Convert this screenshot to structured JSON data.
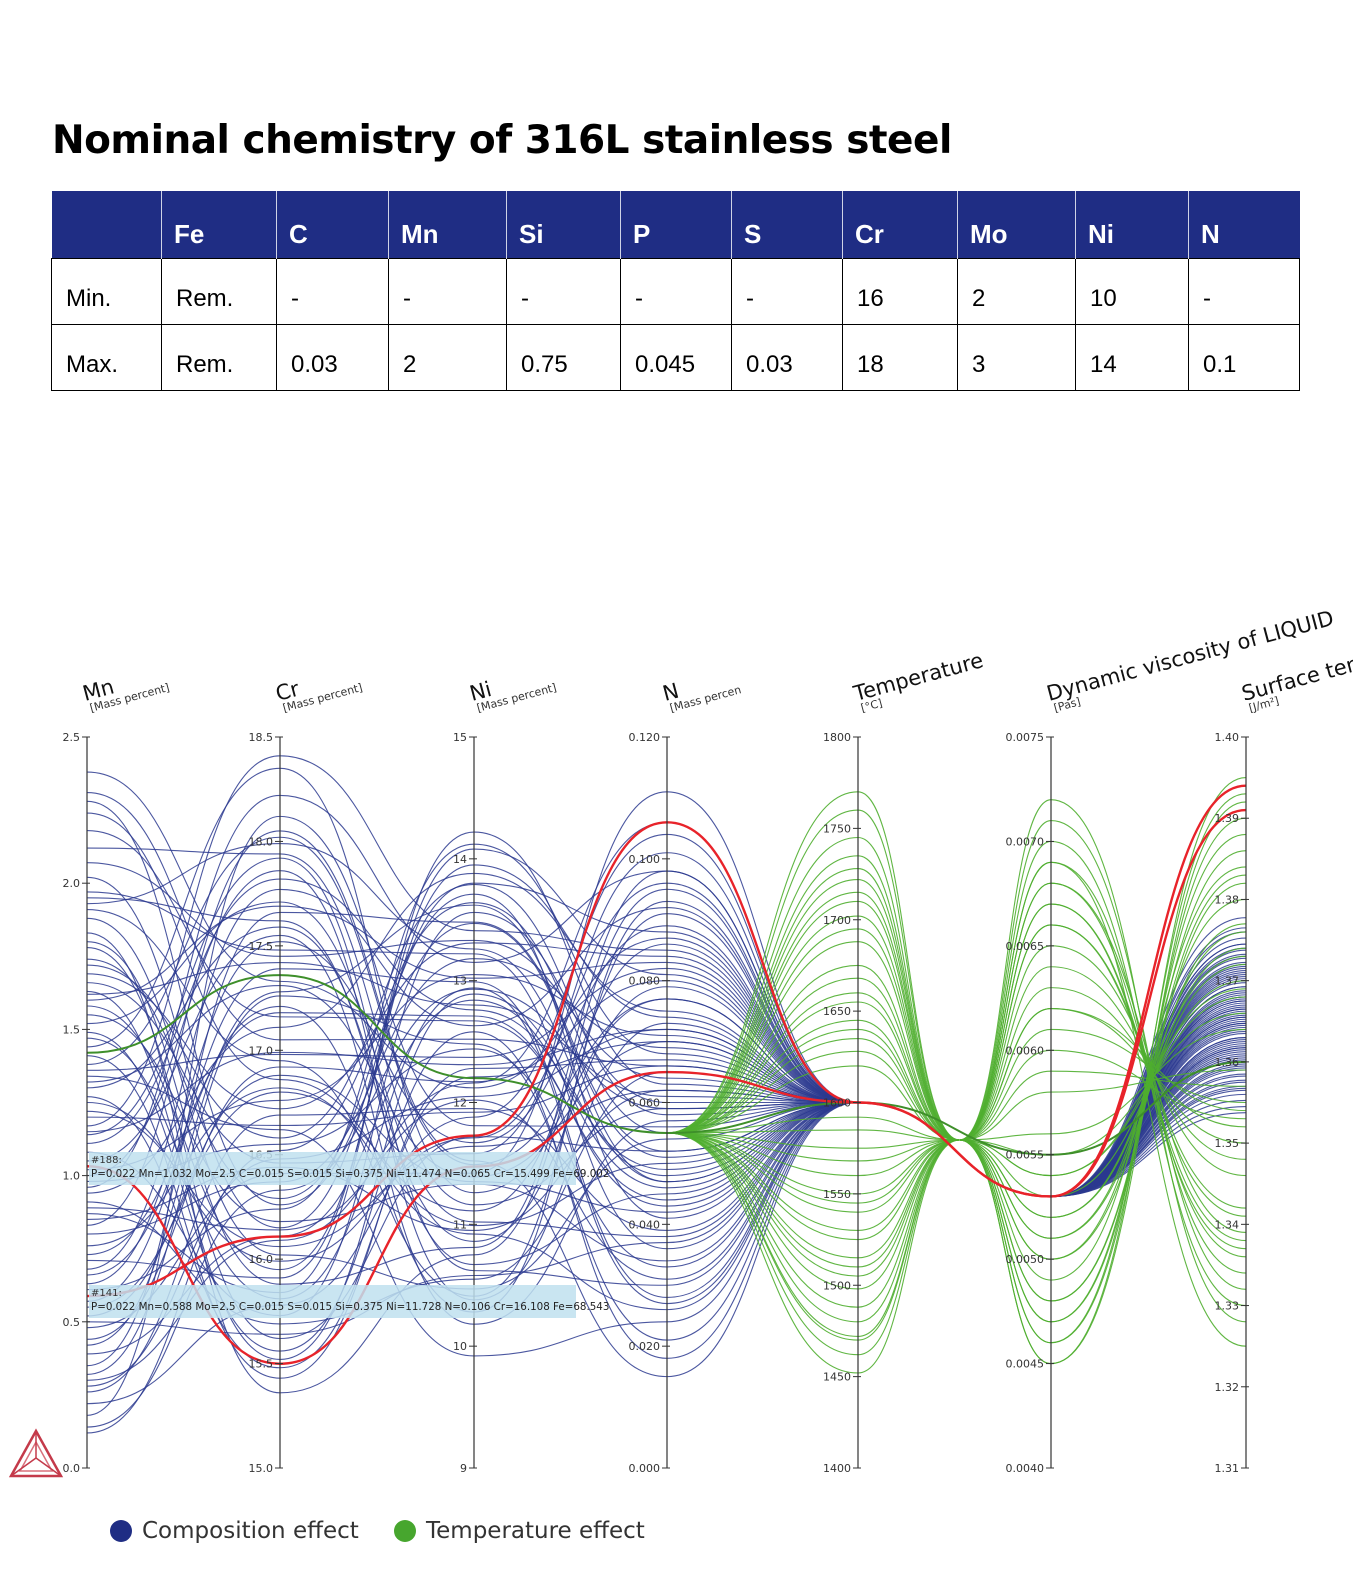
{
  "title": "Nominal chemistry of 316L stainless steel",
  "table": {
    "headers": [
      "",
      "Fe",
      "C",
      "Mn",
      "Si",
      "P",
      "S",
      "Cr",
      "Mo",
      "Ni",
      "N"
    ],
    "rows": [
      [
        "Min.",
        "Rem.",
        "-",
        "-",
        "-",
        "-",
        "-",
        "16",
        "2",
        "10",
        "-"
      ],
      [
        "Max.",
        "Rem.",
        "0.03",
        "2",
        "0.75",
        "0.045",
        "0.03",
        "18",
        "3",
        "14",
        "0.1"
      ]
    ]
  },
  "chart_data": {
    "type": "parallel_coordinates",
    "axes": [
      {
        "name": "Mn",
        "unit": "[Mass percent]",
        "min": 0.0,
        "max": 2.5,
        "ticks": [
          "0.0",
          "0.5",
          "1.0",
          "1.5",
          "2.0",
          "2.5"
        ],
        "tick_values": [
          0,
          0.5,
          1,
          1.5,
          2,
          2.5
        ]
      },
      {
        "name": "Cr",
        "unit": "[Mass percent]",
        "min": 15.0,
        "max": 18.5,
        "ticks": [
          "15.0",
          "15.5",
          "16.0",
          "16.5",
          "17.0",
          "17.5",
          "18.0",
          "18.5"
        ],
        "tick_values": [
          15,
          15.5,
          16,
          16.5,
          17,
          17.5,
          18,
          18.5
        ]
      },
      {
        "name": "Ni",
        "unit": "[Mass percent]",
        "min": 9,
        "max": 15,
        "ticks": [
          "9",
          "10",
          "11",
          "12",
          "13",
          "14",
          "15"
        ],
        "tick_values": [
          9,
          10,
          11,
          12,
          13,
          14,
          15
        ]
      },
      {
        "name": "N",
        "unit": "[Mass percen",
        "min": 0.0,
        "max": 0.12,
        "ticks": [
          "0.000",
          "0.020",
          "0.040",
          "0.060",
          "0.080",
          "0.100",
          "0.120"
        ],
        "tick_values": [
          0,
          0.02,
          0.04,
          0.06,
          0.08,
          0.1,
          0.12
        ]
      },
      {
        "name": "Temperature",
        "unit": "[°C]",
        "min": 1400,
        "max": 1800,
        "ticks": [
          "1400",
          "1450",
          "1500",
          "1550",
          "1600",
          "1650",
          "1700",
          "1750",
          "1800"
        ],
        "tick_values": [
          1400,
          1450,
          1500,
          1550,
          1600,
          1650,
          1700,
          1750,
          1800
        ]
      },
      {
        "name": "Dynamic viscosity of LIQUID",
        "unit": "[Pas]",
        "min": 0.004,
        "max": 0.0075,
        "ticks": [
          "0.0040",
          "0.0045",
          "0.0050",
          "0.0055",
          "0.0060",
          "0.0065",
          "0.0070",
          "0.0075"
        ],
        "tick_values": [
          0.004,
          0.0045,
          0.005,
          0.0055,
          0.006,
          0.0065,
          0.007,
          0.0075
        ]
      },
      {
        "name": "Surface tension",
        "unit": "[J/m²]",
        "min": 1.31,
        "max": 1.4,
        "ticks": [
          "1.31",
          "1.32",
          "1.33",
          "1.34",
          "1.35",
          "1.36",
          "1.37",
          "1.38",
          "1.39",
          "1.40"
        ],
        "tick_values": [
          1.31,
          1.32,
          1.33,
          1.34,
          1.35,
          1.36,
          1.37,
          1.38,
          1.39,
          1.4
        ]
      }
    ],
    "highlighted": [
      {
        "id": "#188:",
        "text": "P=0.022 Mn=1.032 Mo=2.5 C=0.015 S=0.015 Si=0.375 Ni=11.474 N=0.065 Cr=15.499 Fe=69.002",
        "values": [
          1.032,
          15.499,
          11.474,
          0.065,
          1600,
          0.0053,
          1.394
        ]
      },
      {
        "id": "#141:",
        "text": "P=0.022 Mn=0.588 Mo=2.5 C=0.015 S=0.015 Si=0.375 Ni=11.728 N=0.106 Cr=16.108 Fe=68.543",
        "values": [
          0.588,
          16.108,
          11.728,
          0.106,
          1600,
          0.0053,
          1.391
        ]
      }
    ],
    "temperature_highlight": {
      "values": [
        1.42,
        17.36,
        12.2,
        0.055,
        1600,
        0.0055,
        1.36
      ]
    },
    "composition_samples": [
      [
        1.62,
        17.42,
        12.8,
        0.061
      ],
      [
        0.52,
        16.88,
        11.35,
        0.042
      ],
      [
        2.02,
        16.15,
        13.8,
        0.088
      ],
      [
        1.14,
        17.92,
        10.62,
        0.03
      ],
      [
        0.28,
        16.48,
        12.05,
        0.072
      ],
      [
        1.78,
        15.62,
        11.72,
        0.052
      ],
      [
        0.96,
        18.22,
        13.15,
        0.098
      ],
      [
        1.34,
        16.62,
        9.92,
        0.024
      ],
      [
        2.31,
        17.05,
        12.52,
        0.066
      ],
      [
        0.71,
        15.91,
        14.08,
        0.081
      ],
      [
        1.52,
        17.71,
        11.02,
        0.038
      ],
      [
        0.14,
        16.33,
        12.93,
        0.059
      ],
      [
        1.91,
        16.95,
        10.41,
        0.091
      ],
      [
        0.42,
        17.28,
        13.62,
        0.047
      ],
      [
        1.27,
        15.48,
        12.21,
        0.07
      ],
      [
        0.83,
        18.05,
        11.52,
        0.015
      ],
      [
        1.69,
        16.72,
        13.31,
        0.084
      ],
      [
        1.05,
        17.55,
        10.18,
        0.057
      ],
      [
        0.22,
        15.78,
        11.88,
        0.104
      ],
      [
        2.18,
        17.16,
        12.67,
        0.044
      ],
      [
        0.61,
        16.24,
        14.12,
        0.068
      ],
      [
        1.44,
        18.35,
        11.26,
        0.077
      ],
      [
        0.98,
        16.55,
        12.44,
        0.033
      ],
      [
        1.83,
        15.36,
        10.75,
        0.095
      ],
      [
        0.35,
        17.66,
        13.48,
        0.052
      ],
      [
        1.22,
        16.06,
        11.64,
        0.062
      ],
      [
        2.38,
        17.33,
        12.12,
        0.087
      ],
      [
        0.76,
        16.82,
        10.92,
        0.026
      ],
      [
        1.58,
        15.95,
        13.95,
        0.074
      ],
      [
        1.11,
        17.82,
        12.76,
        0.049
      ],
      [
        0.48,
        16.41,
        11.42,
        0.111
      ],
      [
        1.97,
        17.48,
        13.22,
        0.036
      ],
      [
        0.91,
        15.69,
        10.55,
        0.065
      ],
      [
        1.36,
        16.98,
        12.37,
        0.082
      ],
      [
        0.18,
        18.12,
        11.81,
        0.056
      ],
      [
        1.74,
        16.29,
        13.71,
        0.041
      ],
      [
        0.66,
        17.21,
        10.28,
        0.093
      ],
      [
        1.49,
        15.56,
        12.58,
        0.018
      ],
      [
        1.02,
        16.76,
        13.05,
        0.071
      ],
      [
        2.12,
        17.94,
        11.16,
        0.059
      ],
      [
        0.39,
        16.11,
        12.84,
        0.046
      ],
      [
        1.3,
        17.59,
        10.86,
        0.079
      ],
      [
        0.87,
        15.84,
        14.22,
        0.063
      ],
      [
        1.66,
        16.46,
        11.58,
        0.101
      ],
      [
        0.57,
        17.39,
        12.99,
        0.028
      ],
      [
        1.88,
        16.02,
        10.47,
        0.054
      ],
      [
        1.17,
        18.41,
        13.41,
        0.085
      ],
      [
        0.26,
        16.69,
        11.95,
        0.039
      ],
      [
        1.41,
        15.43,
        12.28,
        0.067
      ],
      [
        0.94,
        17.11,
        13.88,
        0.075
      ],
      [
        2.24,
        16.86,
        10.99,
        0.05
      ],
      [
        0.68,
        17.77,
        12.63,
        0.092
      ],
      [
        1.55,
        16.18,
        11.33,
        0.034
      ],
      [
        1.08,
        15.73,
        13.56,
        0.06
      ],
      [
        0.44,
        16.92,
        12.17,
        0.08
      ],
      [
        1.95,
        17.62,
        10.67,
        0.045
      ],
      [
        0.8,
        16.37,
        13.18,
        0.069
      ],
      [
        1.25,
        15.99,
        11.71,
        0.096
      ],
      [
        0.32,
        17.26,
        12.48,
        0.021
      ],
      [
        1.72,
        16.58,
        13.79,
        0.058
      ],
      [
        1.0,
        17.86,
        10.38,
        0.073
      ],
      [
        1.63,
        15.52,
        12.89,
        0.048
      ],
      [
        0.55,
        16.8,
        11.11,
        0.086
      ],
      [
        2.07,
        17.45,
        13.33,
        0.064
      ],
      [
        0.89,
        16.14,
        12.02,
        0.031
      ],
      [
        1.38,
        18.02,
        11.49,
        0.077
      ],
      [
        0.12,
        16.52,
        13.64,
        0.055
      ],
      [
        1.8,
        15.88,
        10.81,
        0.098
      ],
      [
        0.73,
        17.18,
        12.71,
        0.043
      ],
      [
        1.2,
        16.64,
        11.92,
        0.066
      ],
      [
        1.6,
        17.69,
        13.02,
        0.083
      ],
      [
        0.5,
        15.64,
        10.58,
        0.037
      ],
      [
        1.15,
        16.99,
        12.31,
        0.072
      ],
      [
        2.28,
        16.26,
        13.47,
        0.051
      ],
      [
        0.63,
        17.52,
        11.67,
        0.089
      ],
      [
        1.47,
        15.81,
        12.94,
        0.027
      ],
      [
        0.85,
        16.44,
        10.95,
        0.062
      ],
      [
        1.93,
        17.99,
        13.26,
        0.047
      ],
      [
        0.3,
        16.09,
        12.16,
        0.106
      ],
      [
        1.32,
        17.31,
        11.39,
        0.07
      ]
    ],
    "temperature_samples": [
      [
        1770,
        0.0045,
        1.395
      ],
      [
        1525,
        0.0069,
        1.325
      ],
      [
        1702,
        0.0048,
        1.382
      ],
      [
        1480,
        0.0071,
        1.332
      ],
      [
        1655,
        0.0052,
        1.372
      ],
      [
        1452,
        0.0066,
        1.341
      ],
      [
        1735,
        0.0047,
        1.388
      ],
      [
        1560,
        0.0062,
        1.352
      ],
      [
        1688,
        0.005,
        1.377
      ],
      [
        1505,
        0.0068,
        1.336
      ],
      [
        1620,
        0.0055,
        1.366
      ],
      [
        1540,
        0.0064,
        1.348
      ],
      [
        1722,
        0.0046,
        1.39
      ],
      [
        1470,
        0.007,
        1.33
      ],
      [
        1668,
        0.0051,
        1.374
      ],
      [
        1585,
        0.0059,
        1.357
      ],
      [
        1745,
        0.0045,
        1.392
      ],
      [
        1498,
        0.0067,
        1.338
      ],
      [
        1635,
        0.0054,
        1.368
      ],
      [
        1575,
        0.0061,
        1.355
      ],
      [
        1710,
        0.0049,
        1.384
      ],
      [
        1462,
        0.0072,
        1.328
      ],
      [
        1645,
        0.0053,
        1.37
      ],
      [
        1530,
        0.0065,
        1.346
      ],
      [
        1695,
        0.005,
        1.38
      ],
      [
        1515,
        0.0066,
        1.342
      ],
      [
        1760,
        0.0046,
        1.393
      ],
      [
        1550,
        0.0063,
        1.35
      ],
      [
        1675,
        0.0051,
        1.376
      ],
      [
        1488,
        0.0069,
        1.334
      ],
      [
        1628,
        0.0056,
        1.364
      ],
      [
        1592,
        0.0058,
        1.359
      ],
      [
        1728,
        0.0047,
        1.386
      ],
      [
        1472,
        0.0068,
        1.339
      ],
      [
        1660,
        0.0052,
        1.373
      ],
      [
        1545,
        0.006,
        1.353
      ],
      [
        1715,
        0.0048,
        1.383
      ],
      [
        1510,
        0.0067,
        1.337
      ],
      [
        1640,
        0.0054,
        1.369
      ],
      [
        1568,
        0.0062,
        1.354
      ]
    ]
  },
  "legend": [
    {
      "label": "Composition effect",
      "color": "#1f2d84"
    },
    {
      "label": "Temperature effect",
      "color": "#47a62e"
    }
  ],
  "colors": {
    "composition": "#2b3a8f",
    "temperature": "#4fae2f",
    "highlight": "#e8232a",
    "header_bg": "#1f2d84"
  }
}
